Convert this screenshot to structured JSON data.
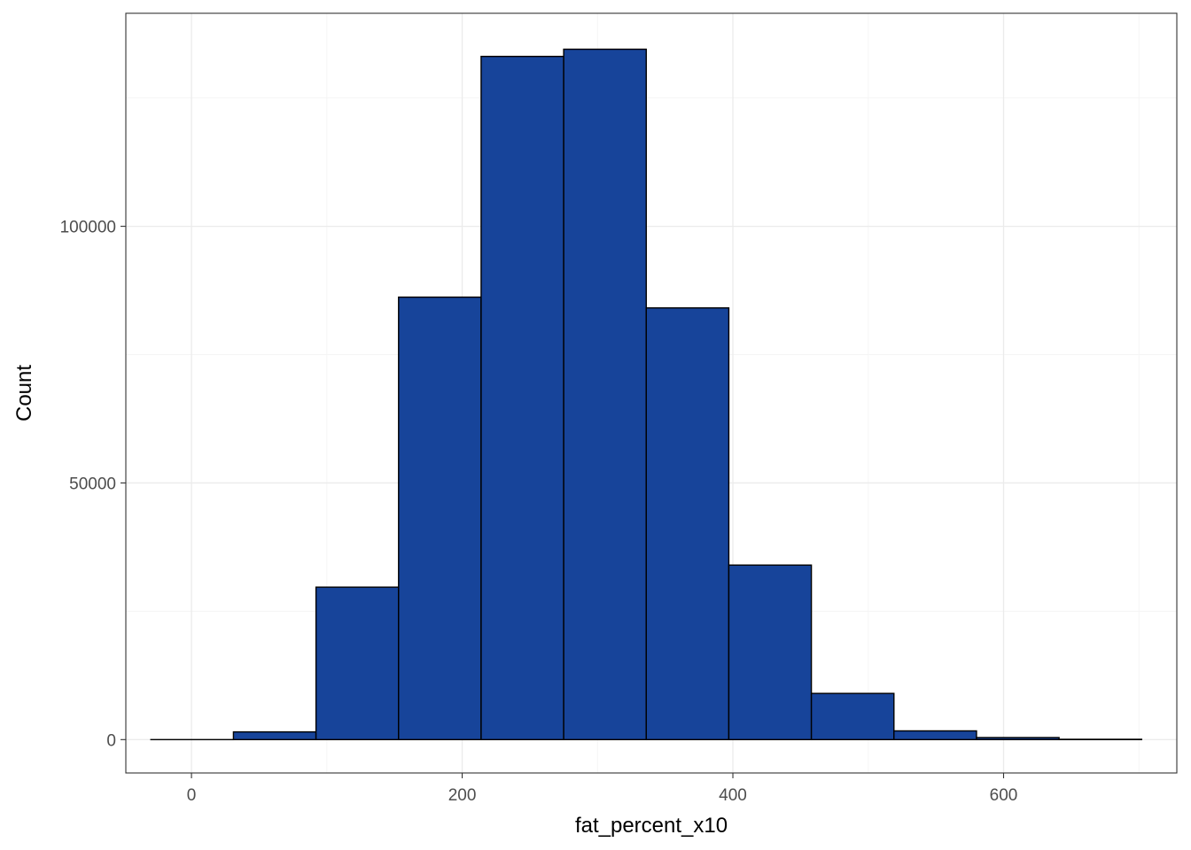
{
  "chart_data": {
    "type": "bar",
    "variant": "histogram",
    "title": "",
    "xlabel": "fat_percent_x10",
    "ylabel": "Count",
    "xlim": [
      -48.5,
      728
    ],
    "ylim": [
      -6500,
      141500
    ],
    "x_ticks": [
      0,
      200,
      400,
      600
    ],
    "y_ticks": [
      0,
      50000,
      100000
    ],
    "grid": true,
    "bin_width": 61,
    "bins": [
      {
        "start": -30,
        "end": 31,
        "count": 0
      },
      {
        "start": 31,
        "end": 92,
        "count": 1500
      },
      {
        "start": 92,
        "end": 153,
        "count": 29700
      },
      {
        "start": 153,
        "end": 214,
        "count": 86200
      },
      {
        "start": 214,
        "end": 275,
        "count": 133100
      },
      {
        "start": 275,
        "end": 336,
        "count": 134500
      },
      {
        "start": 336,
        "end": 397,
        "count": 84100
      },
      {
        "start": 397,
        "end": 458,
        "count": 34000
      },
      {
        "start": 458,
        "end": 519,
        "count": 9000
      },
      {
        "start": 519,
        "end": 580,
        "count": 1700
      },
      {
        "start": 580,
        "end": 641,
        "count": 400
      },
      {
        "start": 641,
        "end": 702,
        "count": 60
      }
    ],
    "colors": {
      "bar_fill": "#17449a",
      "bar_stroke": "#000000",
      "grid_major": "#ebebeb",
      "grid_minor": "#f5f5f5",
      "panel_border": "#333333",
      "tick_text": "#4d4d4d"
    }
  }
}
